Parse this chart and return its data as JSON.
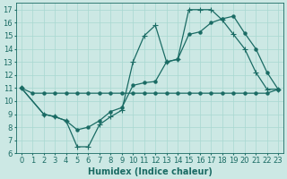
{
  "line_flat_x": [
    0,
    1,
    2,
    3,
    4,
    5,
    6,
    7,
    8,
    9,
    10,
    11,
    12,
    13,
    14,
    15,
    16,
    17,
    18,
    19,
    20,
    21,
    22,
    23
  ],
  "line_flat_y": [
    11,
    10.6,
    10.6,
    10.6,
    10.6,
    10.6,
    10.6,
    10.6,
    10.6,
    10.6,
    10.6,
    10.6,
    10.6,
    10.6,
    10.6,
    10.6,
    10.6,
    10.6,
    10.6,
    10.6,
    10.6,
    10.6,
    10.6,
    10.9
  ],
  "line_mid_x": [
    0,
    2,
    3,
    4,
    5,
    6,
    7,
    8,
    9,
    10,
    11,
    12,
    13,
    14,
    15,
    16,
    17,
    18,
    19,
    20,
    21,
    22,
    23
  ],
  "line_mid_y": [
    11,
    9.0,
    8.8,
    8.5,
    7.8,
    8.0,
    8.5,
    9.2,
    9.5,
    11.2,
    11.4,
    11.5,
    13.0,
    13.2,
    15.1,
    15.3,
    16.0,
    16.3,
    16.5,
    15.2,
    14.0,
    12.2,
    10.9
  ],
  "line_top_x": [
    0,
    2,
    3,
    4,
    5,
    6,
    7,
    8,
    9,
    10,
    11,
    12,
    13,
    14,
    15,
    16,
    17,
    18,
    19,
    20,
    21,
    22,
    23
  ],
  "line_top_y": [
    11,
    9.0,
    8.8,
    8.5,
    6.5,
    6.5,
    8.2,
    8.8,
    9.3,
    13.0,
    15.0,
    15.8,
    13.0,
    13.2,
    17.0,
    17.0,
    17.0,
    16.2,
    15.1,
    14.0,
    12.2,
    10.9,
    10.9
  ],
  "bg_color": "#cce8e4",
  "line_color": "#1a6b64",
  "grid_color": "#a8d8d0",
  "xlabel": "Humidex (Indice chaleur)",
  "xlim": [
    -0.5,
    23.5
  ],
  "ylim": [
    6,
    17.5
  ],
  "xticks": [
    0,
    1,
    2,
    3,
    4,
    5,
    6,
    7,
    8,
    9,
    10,
    11,
    12,
    13,
    14,
    15,
    16,
    17,
    18,
    19,
    20,
    21,
    22,
    23
  ],
  "yticks": [
    6,
    7,
    8,
    9,
    10,
    11,
    12,
    13,
    14,
    15,
    16,
    17
  ],
  "fontsize": 6,
  "linewidth": 0.9,
  "markersize": 2.2
}
